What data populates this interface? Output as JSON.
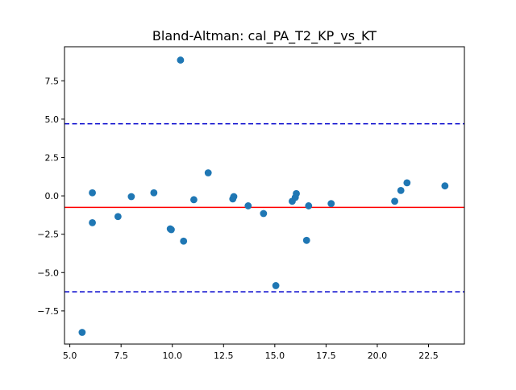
{
  "chart_data": {
    "type": "scatter",
    "title": "Bland-Altman: cal_PA_T2_KP_vs_KT",
    "xlabel": "",
    "ylabel": "",
    "xlim": [
      4.74,
      24.25
    ],
    "ylim": [
      -9.66,
      9.72
    ],
    "xticks": [
      5.0,
      7.5,
      10.0,
      12.5,
      15.0,
      17.5,
      20.0,
      22.5
    ],
    "xtick_labels": [
      "5.0",
      "7.5",
      "10.0",
      "12.5",
      "15.0",
      "17.5",
      "20.0",
      "22.5"
    ],
    "yticks": [
      -7.5,
      -5.0,
      -2.5,
      0.0,
      2.5,
      5.0,
      7.5
    ],
    "ytick_labels": [
      "−7.5",
      "−5.0",
      "−2.5",
      "0.0",
      "2.5",
      "5.0",
      "7.5"
    ],
    "grid": false,
    "points": [
      {
        "x": 5.6,
        "y": -8.9
      },
      {
        "x": 6.1,
        "y": 0.2
      },
      {
        "x": 6.1,
        "y": -1.75
      },
      {
        "x": 7.35,
        "y": -1.35
      },
      {
        "x": 8.0,
        "y": -0.05
      },
      {
        "x": 9.1,
        "y": 0.2
      },
      {
        "x": 9.9,
        "y": -2.15
      },
      {
        "x": 9.95,
        "y": -2.2
      },
      {
        "x": 10.4,
        "y": 8.85
      },
      {
        "x": 10.55,
        "y": -2.95
      },
      {
        "x": 11.05,
        "y": -0.25
      },
      {
        "x": 11.75,
        "y": 1.5
      },
      {
        "x": 12.95,
        "y": -0.2
      },
      {
        "x": 13.0,
        "y": -0.05
      },
      {
        "x": 13.7,
        "y": -0.65
      },
      {
        "x": 14.45,
        "y": -1.15
      },
      {
        "x": 15.05,
        "y": -5.85
      },
      {
        "x": 15.85,
        "y": -0.35
      },
      {
        "x": 16.0,
        "y": -0.1
      },
      {
        "x": 16.05,
        "y": 0.15
      },
      {
        "x": 16.55,
        "y": -2.9
      },
      {
        "x": 16.65,
        "y": -0.65
      },
      {
        "x": 17.75,
        "y": -0.5
      },
      {
        "x": 20.85,
        "y": -0.35
      },
      {
        "x": 21.15,
        "y": 0.35
      },
      {
        "x": 21.45,
        "y": 0.85
      },
      {
        "x": 23.3,
        "y": 0.65
      }
    ],
    "mean_line": {
      "y": -0.75,
      "color": "#ff0000",
      "style": "solid"
    },
    "limit_lines": [
      {
        "y": 4.7,
        "color": "#0000cc",
        "style": "dashed"
      },
      {
        "y": -6.25,
        "color": "#0000cc",
        "style": "dashed"
      }
    ],
    "point_color": "#1f77b4"
  }
}
